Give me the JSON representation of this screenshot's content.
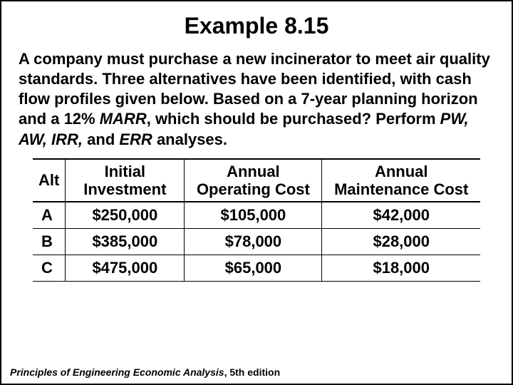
{
  "title": "Example 8.15",
  "paragraph": {
    "lead": "A company must purchase a new incinerator to meet air quality standards. Three alternatives have been identified, with cash flow profiles given below. Based on a 7-year planning horizon and a 12% ",
    "marr": "MARR",
    "mid": ", which should be purchased? Perform ",
    "pw": "PW, AW, IRR,",
    "and": " and ",
    "err": "ERR",
    "tail": " analyses."
  },
  "table": {
    "columns": [
      "Alt",
      "Initial Investment",
      "Annual Operating Cost",
      "Annual Maintenance Cost"
    ],
    "rows": [
      [
        "A",
        "$250,000",
        "$105,000",
        "$42,000"
      ],
      [
        "B",
        "$385,000",
        "$78,000",
        "$28,000"
      ],
      [
        "C",
        "$475,000",
        "$65,000",
        "$18,000"
      ]
    ],
    "header_fontsize": 22,
    "cell_fontsize": 22,
    "border_color": "#000000",
    "background_color": "#ffffff"
  },
  "footer": {
    "book": "Principles of Engineering Economic Analysis",
    "edition": ", 5th edition"
  },
  "colors": {
    "text": "#000000",
    "background": "#ffffff",
    "frame_border": "#000000"
  }
}
